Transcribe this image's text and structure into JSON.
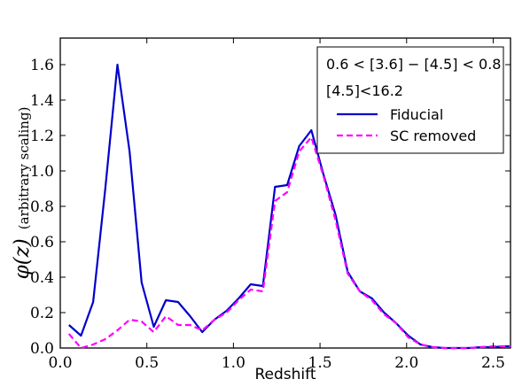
{
  "chart_data": {
    "type": "line",
    "title": "",
    "xlabel": "Redshift",
    "ylabel": {
      "math": "φ(z)",
      "text": "(arbitrary scaling)"
    },
    "xlim": [
      0.0,
      2.6
    ],
    "ylim": [
      0.0,
      1.75
    ],
    "x_ticks": [
      0.0,
      0.5,
      1.0,
      1.5,
      2.0,
      2.5
    ],
    "x_tick_labels": [
      "0.0",
      "0.5",
      "1.0",
      "1.5",
      "2.0",
      "2.5"
    ],
    "y_ticks": [
      0.0,
      0.2,
      0.4,
      0.6,
      0.8,
      1.0,
      1.2,
      1.4,
      1.6
    ],
    "y_tick_labels": [
      "0.0",
      "0.2",
      "0.4",
      "0.6",
      "0.8",
      "1.0",
      "1.2",
      "1.4",
      "1.6"
    ],
    "grid": false,
    "legend_position": "top-right",
    "legend_notes": [
      "0.6 < [3.6] − [4.5] < 0.8",
      "[4.5]<16.2"
    ],
    "x": [
      0.05,
      0.12,
      0.19,
      0.26,
      0.33,
      0.4,
      0.47,
      0.54,
      0.61,
      0.68,
      0.75,
      0.82,
      0.89,
      0.96,
      1.03,
      1.1,
      1.17,
      1.24,
      1.31,
      1.38,
      1.45,
      1.52,
      1.59,
      1.66,
      1.73,
      1.8,
      1.87,
      1.94,
      2.01,
      2.08,
      2.15,
      2.22,
      2.29,
      2.36,
      2.43,
      2.5,
      2.57,
      2.6
    ],
    "series": [
      {
        "name": "Fiducial",
        "color": "#0000cc",
        "style": "solid",
        "values": [
          0.13,
          0.07,
          0.26,
          0.9,
          1.6,
          1.11,
          0.37,
          0.12,
          0.27,
          0.26,
          0.18,
          0.09,
          0.16,
          0.21,
          0.28,
          0.36,
          0.35,
          0.91,
          0.92,
          1.14,
          1.23,
          0.98,
          0.75,
          0.43,
          0.32,
          0.28,
          0.2,
          0.14,
          0.07,
          0.02,
          0.005,
          0.0,
          0.0,
          0.0,
          0.005,
          0.005,
          0.01,
          0.01
        ]
      },
      {
        "name": "SC removed",
        "color": "#ff00ff",
        "style": "dashed",
        "values": [
          0.08,
          0.0,
          0.02,
          0.05,
          0.1,
          0.16,
          0.15,
          0.09,
          0.18,
          0.13,
          0.13,
          0.1,
          0.16,
          0.2,
          0.27,
          0.33,
          0.32,
          0.83,
          0.88,
          1.11,
          1.19,
          0.97,
          0.72,
          0.42,
          0.32,
          0.27,
          0.19,
          0.14,
          0.06,
          0.02,
          0.005,
          0.0,
          0.0,
          0.0,
          0.005,
          0.01,
          0.01,
          0.01
        ]
      }
    ]
  }
}
